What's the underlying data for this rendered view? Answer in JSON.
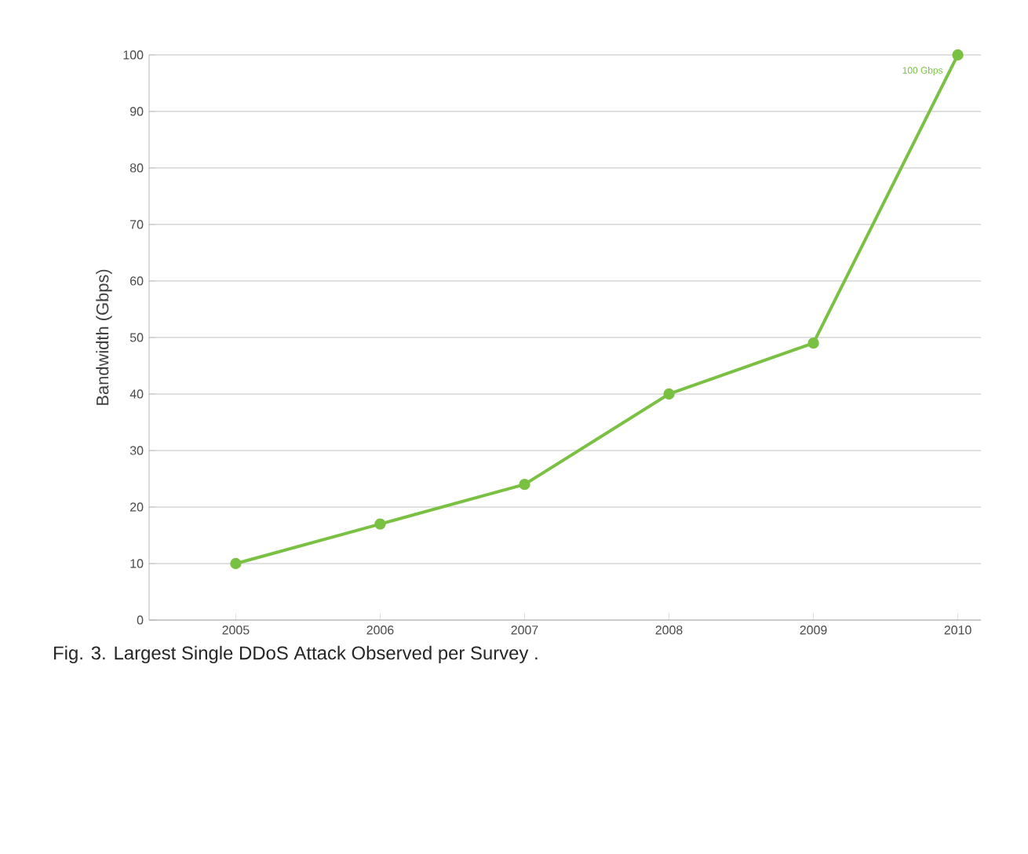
{
  "chart_data": {
    "type": "line",
    "ylabel": "Bandwidth (Gbps)",
    "categories": [
      "2005",
      "2006",
      "2007",
      "2008",
      "2009",
      "2010"
    ],
    "series": [
      {
        "color": "#7ac143",
        "values": [
          10,
          17,
          24,
          40,
          49,
          100
        ]
      }
    ],
    "ylim": [
      0,
      100
    ],
    "yticks": [
      0,
      10,
      20,
      30,
      40,
      50,
      60,
      70,
      80,
      90,
      100
    ],
    "grid": "y",
    "marker": "circle",
    "line_style": "solid",
    "annotations": [
      {
        "text": "100 Gbps",
        "x": "2010",
        "y": 100
      },
      "Fig. 3. Largest Single DDoS Attack Observed per Survey ."
    ]
  }
}
